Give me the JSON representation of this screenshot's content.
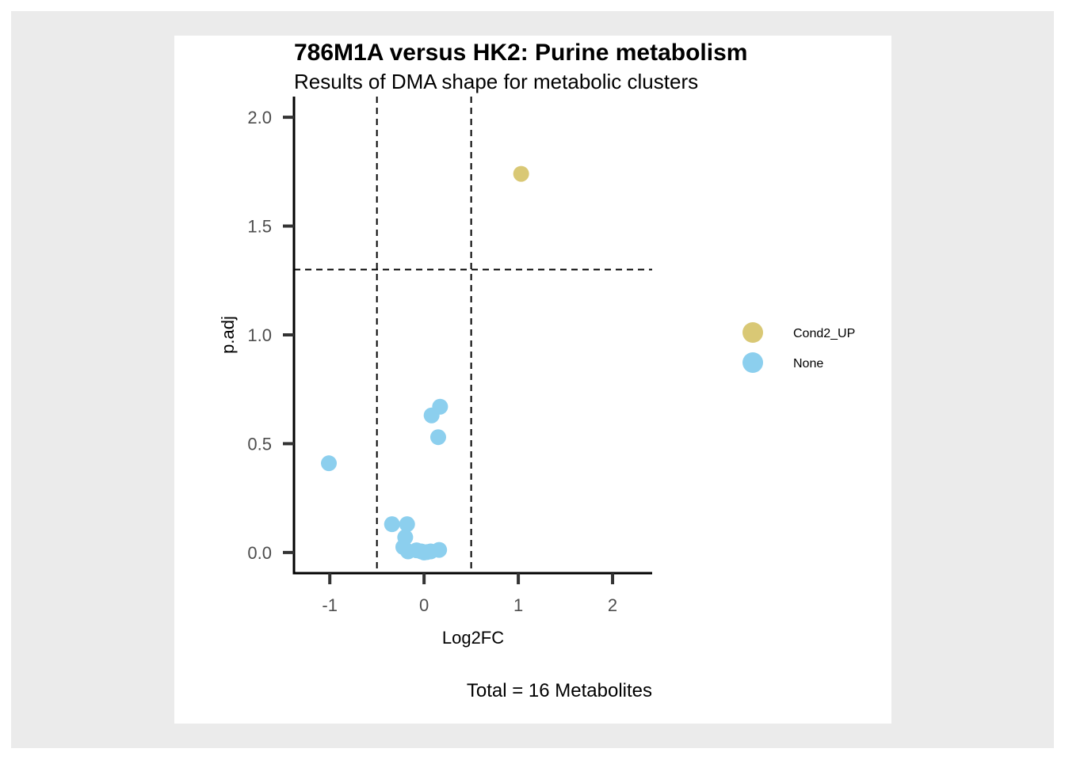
{
  "chart_data": {
    "type": "scatter",
    "title": "786M1A versus HK2: Purine metabolism",
    "subtitle": "Results of DMA shape for metabolic clusters",
    "xlabel": "Log2FC",
    "ylabel": "p.adj",
    "caption": "Total = 16 Metabolites",
    "xlim": [
      -1.38,
      2.42
    ],
    "ylim": [
      -0.095,
      2.095
    ],
    "xticks": [
      -1,
      0,
      1,
      2
    ],
    "xtick_labels": [
      "-1",
      "0",
      "1",
      "2"
    ],
    "yticks": [
      0.0,
      0.5,
      1.0,
      1.5,
      2.0
    ],
    "ytick_labels": [
      "0.0",
      "0.5",
      "1.0",
      "1.5",
      "2.0"
    ],
    "reference_lines": {
      "vertical": [
        -0.5,
        0.5
      ],
      "horizontal": [
        1.3
      ]
    },
    "grid": false,
    "legend_position": "right",
    "series": [
      {
        "name": "Cond2_UP",
        "color": "#d9c875",
        "points": [
          {
            "x": 1.03,
            "y": 1.74
          }
        ]
      },
      {
        "name": "None",
        "color": "#8ccfee",
        "points": [
          {
            "x": -1.01,
            "y": 0.41
          },
          {
            "x": 0.08,
            "y": 0.63
          },
          {
            "x": 0.17,
            "y": 0.67
          },
          {
            "x": 0.15,
            "y": 0.53
          },
          {
            "x": -0.34,
            "y": 0.13
          },
          {
            "x": -0.18,
            "y": 0.13
          },
          {
            "x": -0.2,
            "y": 0.07
          },
          {
            "x": -0.22,
            "y": 0.025
          },
          {
            "x": -0.17,
            "y": 0.005
          },
          {
            "x": -0.08,
            "y": 0.01
          },
          {
            "x": -0.03,
            "y": 0.005
          },
          {
            "x": 0.0,
            "y": 0.0
          },
          {
            "x": 0.03,
            "y": 0.002
          },
          {
            "x": 0.07,
            "y": 0.005
          },
          {
            "x": 0.16,
            "y": 0.012
          }
        ]
      }
    ]
  }
}
